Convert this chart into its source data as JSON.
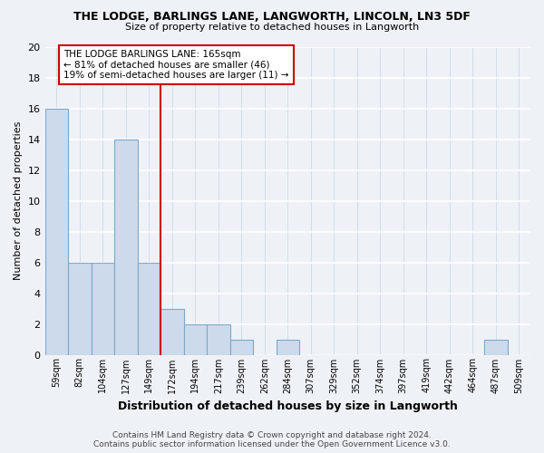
{
  "title": "THE LODGE, BARLINGS LANE, LANGWORTH, LINCOLN, LN3 5DF",
  "subtitle": "Size of property relative to detached houses in Langworth",
  "xlabel": "Distribution of detached houses by size in Langworth",
  "ylabel": "Number of detached properties",
  "bin_labels": [
    "59sqm",
    "82sqm",
    "104sqm",
    "127sqm",
    "149sqm",
    "172sqm",
    "194sqm",
    "217sqm",
    "239sqm",
    "262sqm",
    "284sqm",
    "307sqm",
    "329sqm",
    "352sqm",
    "374sqm",
    "397sqm",
    "419sqm",
    "442sqm",
    "464sqm",
    "487sqm",
    "509sqm"
  ],
  "bar_heights": [
    16,
    6,
    6,
    14,
    6,
    3,
    2,
    2,
    1,
    0,
    1,
    0,
    0,
    0,
    0,
    0,
    0,
    0,
    0,
    1,
    0
  ],
  "bar_color": "#ccdaeb",
  "bar_edge_color": "#7ea8c9",
  "property_line_color": "#cc0000",
  "property_line_index": 5,
  "annotation_text_line1": "THE LODGE BARLINGS LANE: 165sqm",
  "annotation_text_line2": "← 81% of detached houses are smaller (46)",
  "annotation_text_line3": "19% of semi-detached houses are larger (11) →",
  "annotation_box_color": "white",
  "annotation_box_edge": "#cc0000",
  "ylim": [
    0,
    20
  ],
  "yticks": [
    0,
    2,
    4,
    6,
    8,
    10,
    12,
    14,
    16,
    18,
    20
  ],
  "footer_line1": "Contains HM Land Registry data © Crown copyright and database right 2024.",
  "footer_line2": "Contains public sector information licensed under the Open Government Licence v3.0.",
  "background_color": "#eef2f7",
  "grid_color": "#c8d4e0"
}
